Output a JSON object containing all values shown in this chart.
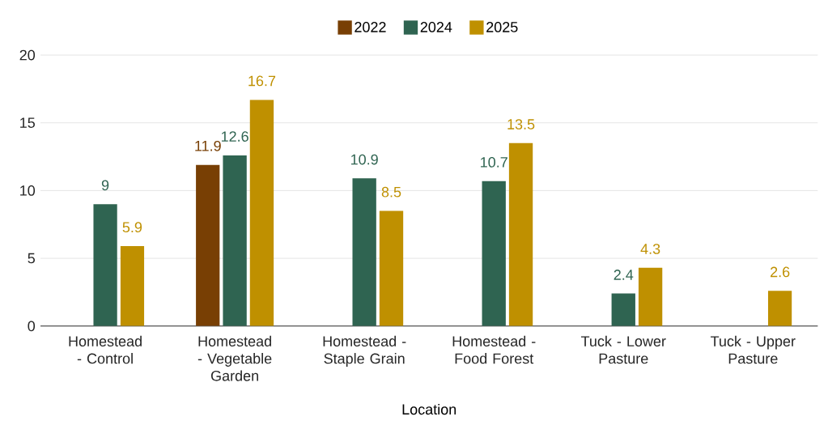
{
  "chart_data": {
    "type": "bar",
    "xlabel": "Location",
    "categories": [
      "Homestead - Control",
      "Homestead - Vegetable Garden",
      "Homestead - Staple Grain",
      "Homestead - Food Forest",
      "Tuck - Lower Pasture",
      "Tuck - Upper Pasture"
    ],
    "series": [
      {
        "name": "2022",
        "color": "#783f04",
        "values": [
          null,
          11.9,
          null,
          null,
          null,
          null
        ]
      },
      {
        "name": "2024",
        "color": "#2f6451",
        "values": [
          9,
          12.6,
          10.9,
          10.7,
          2.4,
          null
        ]
      },
      {
        "name": "2025",
        "color": "#bf9000",
        "values": [
          5.9,
          16.7,
          8.5,
          13.5,
          4.3,
          2.6
        ]
      }
    ],
    "ylim": [
      0,
      20
    ],
    "yticks": [
      0,
      5,
      10,
      15,
      20
    ],
    "grid": "y",
    "legend": "top",
    "data_labels": true
  }
}
